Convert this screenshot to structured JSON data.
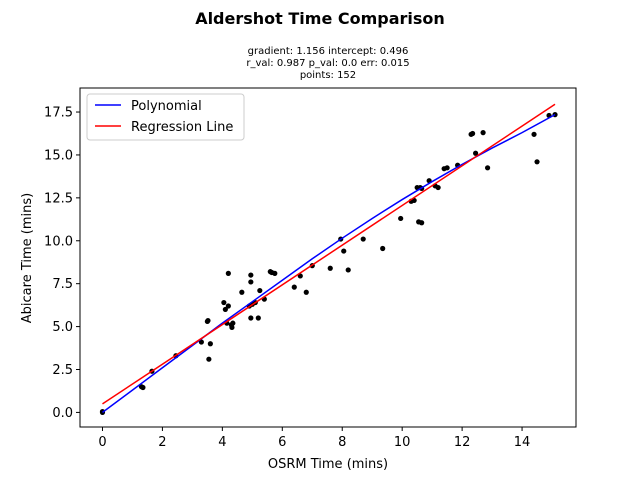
{
  "chart_data": {
    "type": "scatter",
    "title": "Aldershot Time Comparison",
    "subtitle_lines": [
      "gradient: 1.156  intercept: 0.496",
      "r_val: 0.987  p_val: 0.0  err: 0.015",
      "points: 152"
    ],
    "xlabel": "OSRM Time (mins)",
    "ylabel": "Abicare Time (mins)",
    "xlim": [
      -0.75,
      15.8
    ],
    "ylim": [
      -0.85,
      18.9
    ],
    "xticks": [
      0,
      2,
      4,
      6,
      8,
      10,
      12,
      14
    ],
    "yticks": [
      0.0,
      2.5,
      5.0,
      7.5,
      10.0,
      12.5,
      15.0,
      17.5
    ],
    "ytick_labels": [
      "0.0",
      "2.5",
      "5.0",
      "7.5",
      "10.0",
      "12.5",
      "15.0",
      "17.5"
    ],
    "legend": {
      "placement": "upper-left",
      "entries": [
        {
          "name": "Polynomial",
          "color": "#0000ff"
        },
        {
          "name": "Regression Line",
          "color": "#ff0000"
        }
      ]
    },
    "points_color": "#000000",
    "scatter_points": [
      [
        0.0,
        0.0
      ],
      [
        0.0,
        0.05
      ],
      [
        1.3,
        1.5
      ],
      [
        1.35,
        1.45
      ],
      [
        1.65,
        2.4
      ],
      [
        2.45,
        3.3
      ],
      [
        3.3,
        4.1
      ],
      [
        3.5,
        5.3
      ],
      [
        3.52,
        5.35
      ],
      [
        3.55,
        3.1
      ],
      [
        3.6,
        4.0
      ],
      [
        4.05,
        6.4
      ],
      [
        4.1,
        6.0
      ],
      [
        4.15,
        5.2
      ],
      [
        4.2,
        6.2
      ],
      [
        4.2,
        8.1
      ],
      [
        4.3,
        5.1
      ],
      [
        4.32,
        4.95
      ],
      [
        4.35,
        5.2
      ],
      [
        4.65,
        7.0
      ],
      [
        4.9,
        6.2
      ],
      [
        4.95,
        7.6
      ],
      [
        4.95,
        8.0
      ],
      [
        4.95,
        5.5
      ],
      [
        5.0,
        6.3
      ],
      [
        5.1,
        6.4
      ],
      [
        5.2,
        5.5
      ],
      [
        5.25,
        7.1
      ],
      [
        5.4,
        6.6
      ],
      [
        5.6,
        8.2
      ],
      [
        5.65,
        8.15
      ],
      [
        5.75,
        8.1
      ],
      [
        6.4,
        7.3
      ],
      [
        6.6,
        7.95
      ],
      [
        6.8,
        7.0
      ],
      [
        7.0,
        8.55
      ],
      [
        7.6,
        8.4
      ],
      [
        7.95,
        10.1
      ],
      [
        8.05,
        9.4
      ],
      [
        8.2,
        8.3
      ],
      [
        8.7,
        10.1
      ],
      [
        9.35,
        9.55
      ],
      [
        9.95,
        11.3
      ],
      [
        10.3,
        12.3
      ],
      [
        10.4,
        12.35
      ],
      [
        10.5,
        13.1
      ],
      [
        10.55,
        11.1
      ],
      [
        10.6,
        13.1
      ],
      [
        10.65,
        13.05
      ],
      [
        10.65,
        11.05
      ],
      [
        10.9,
        13.5
      ],
      [
        11.1,
        13.2
      ],
      [
        11.2,
        13.1
      ],
      [
        11.4,
        14.2
      ],
      [
        11.5,
        14.25
      ],
      [
        11.85,
        14.4
      ],
      [
        12.3,
        16.2
      ],
      [
        12.35,
        16.25
      ],
      [
        12.45,
        15.1
      ],
      [
        12.7,
        16.3
      ],
      [
        12.85,
        14.25
      ],
      [
        14.4,
        16.2
      ],
      [
        14.5,
        14.6
      ],
      [
        14.9,
        17.3
      ],
      [
        15.1,
        17.35
      ]
    ],
    "regression": {
      "gradient": 1.156,
      "intercept": 0.496,
      "x_range": [
        0,
        15.1
      ],
      "color": "#ff0000"
    },
    "polynomial": {
      "color": "#0000ff",
      "x": [
        0,
        1,
        2,
        3,
        4,
        5,
        6,
        7,
        8,
        9,
        10,
        11,
        12,
        13,
        14,
        15.1
      ],
      "y": [
        0.0,
        1.3,
        2.6,
        3.9,
        5.2,
        6.45,
        7.7,
        8.95,
        10.15,
        11.3,
        12.4,
        13.45,
        14.45,
        15.4,
        16.3,
        17.35
      ]
    }
  }
}
